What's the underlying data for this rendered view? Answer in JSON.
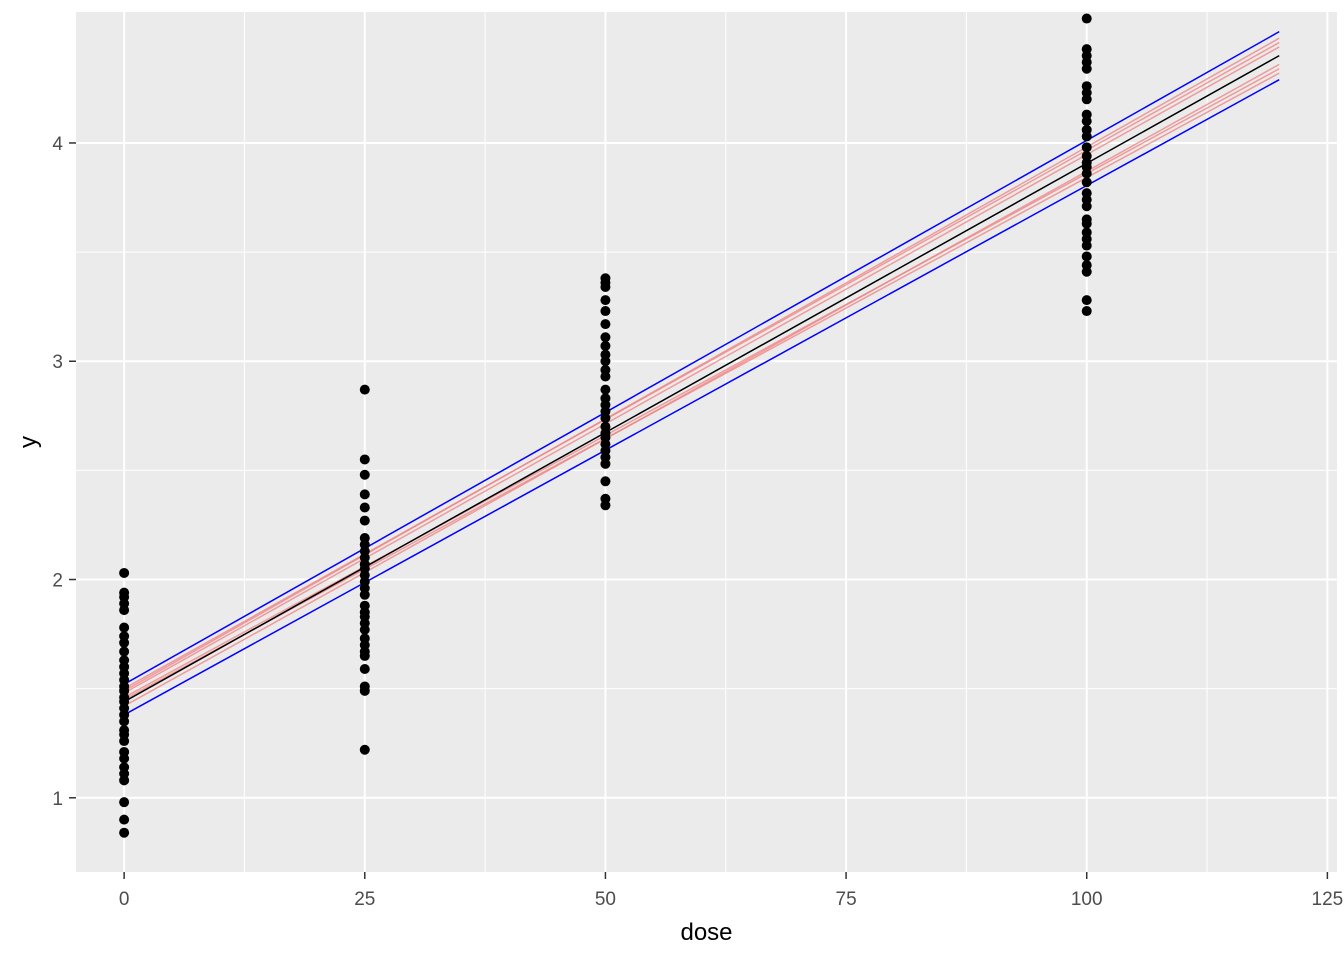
{
  "chart_data": {
    "type": "scatter",
    "xlabel": "dose",
    "ylabel": "y",
    "xlim": [
      -5,
      126
    ],
    "ylim": [
      0.66,
      4.6
    ],
    "x_ticks": [
      0,
      25,
      50,
      75,
      100,
      125
    ],
    "x_tick_labels": [
      "0",
      "25",
      "50",
      "75",
      "100",
      "125"
    ],
    "x_minor_ticks": [
      12.5,
      37.5,
      62.5,
      87.5,
      112.5
    ],
    "y_ticks": [
      1,
      2,
      3,
      4
    ],
    "y_tick_labels": [
      "1",
      "2",
      "3",
      "4"
    ],
    "y_minor_ticks": [
      1.5,
      2.5,
      3.5
    ],
    "grid": true,
    "colors": {
      "panel": "#ebebeb",
      "grid": "#ffffff",
      "points": "#000000",
      "fit_line": "#000000",
      "band_lines": "#0000ff",
      "sample_lines": "#f08080"
    },
    "points": [
      {
        "x": 0,
        "y": [
          0.84,
          0.9,
          0.98,
          1.08,
          1.11,
          1.14,
          1.18,
          1.21,
          1.26,
          1.29,
          1.31,
          1.35,
          1.38,
          1.41,
          1.44,
          1.46,
          1.49,
          1.51,
          1.54,
          1.57,
          1.6,
          1.63,
          1.67,
          1.71,
          1.74,
          1.78,
          1.86,
          1.89,
          1.92,
          1.94,
          2.03
        ]
      },
      {
        "x": 25,
        "y": [
          1.22,
          1.49,
          1.51,
          1.59,
          1.65,
          1.67,
          1.7,
          1.73,
          1.77,
          1.8,
          1.83,
          1.85,
          1.88,
          1.93,
          1.96,
          1.99,
          2.02,
          2.05,
          2.07,
          2.1,
          2.13,
          2.16,
          2.19,
          2.27,
          2.33,
          2.39,
          2.48,
          2.55,
          2.87
        ]
      },
      {
        "x": 50,
        "y": [
          2.34,
          2.37,
          2.45,
          2.53,
          2.56,
          2.59,
          2.62,
          2.65,
          2.67,
          2.7,
          2.74,
          2.77,
          2.8,
          2.83,
          2.87,
          2.93,
          2.96,
          3.0,
          3.03,
          3.07,
          3.11,
          3.17,
          3.23,
          3.28,
          3.34,
          3.36,
          3.38
        ]
      },
      {
        "x": 100,
        "y": [
          3.23,
          3.28,
          3.41,
          3.44,
          3.48,
          3.53,
          3.56,
          3.59,
          3.63,
          3.65,
          3.71,
          3.74,
          3.77,
          3.82,
          3.86,
          3.89,
          3.91,
          3.94,
          3.98,
          4.03,
          4.06,
          4.1,
          4.13,
          4.2,
          4.23,
          4.26,
          4.34,
          4.37,
          4.4,
          4.43,
          4.57
        ]
      }
    ],
    "lines": [
      {
        "role": "fit",
        "x": [
          0,
          120
        ],
        "y": [
          1.44,
          4.4
        ]
      },
      {
        "role": "band-upper",
        "x": [
          0,
          120
        ],
        "y": [
          1.52,
          4.51
        ]
      },
      {
        "role": "band-lower",
        "x": [
          0,
          120
        ],
        "y": [
          1.38,
          4.29
        ]
      },
      {
        "role": "sample",
        "x": [
          0,
          120
        ],
        "y": [
          1.5,
          4.46
        ]
      },
      {
        "role": "sample",
        "x": [
          0,
          120
        ],
        "y": [
          1.48,
          4.44
        ]
      },
      {
        "role": "sample",
        "x": [
          0,
          120
        ],
        "y": [
          1.46,
          4.34
        ]
      },
      {
        "role": "sample",
        "x": [
          0,
          120
        ],
        "y": [
          1.45,
          4.32
        ]
      },
      {
        "role": "sample",
        "x": [
          0,
          120
        ],
        "y": [
          1.42,
          4.36
        ]
      },
      {
        "role": "sample",
        "x": [
          0,
          120
        ],
        "y": [
          1.49,
          4.48
        ]
      }
    ]
  }
}
